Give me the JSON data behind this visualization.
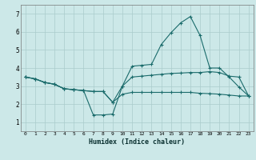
{
  "title": "",
  "xlabel": "Humidex (Indice chaleur)",
  "bg_color": "#cce8e8",
  "grid_color": "#aacccc",
  "line_color": "#1a6b6b",
  "xlim": [
    -0.5,
    23.5
  ],
  "ylim": [
    0.5,
    7.5
  ],
  "xticks": [
    0,
    1,
    2,
    3,
    4,
    5,
    6,
    7,
    8,
    9,
    10,
    11,
    12,
    13,
    14,
    15,
    16,
    17,
    18,
    19,
    20,
    21,
    22,
    23
  ],
  "yticks": [
    1,
    2,
    3,
    4,
    5,
    6,
    7
  ],
  "series1_x": [
    0,
    1,
    2,
    3,
    4,
    5,
    6,
    7,
    8,
    9,
    10,
    11,
    12,
    13,
    14,
    15,
    16,
    17,
    18,
    19,
    20,
    21,
    22,
    23
  ],
  "series1_y": [
    3.5,
    3.4,
    3.2,
    3.1,
    2.85,
    2.8,
    2.75,
    2.7,
    2.7,
    2.1,
    3.0,
    4.1,
    4.15,
    4.2,
    5.3,
    5.95,
    6.5,
    6.85,
    5.8,
    4.0,
    4.0,
    3.5,
    2.95,
    2.45
  ],
  "series2_x": [
    0,
    1,
    2,
    3,
    4,
    5,
    6,
    7,
    8,
    9,
    10,
    11,
    12,
    13,
    14,
    15,
    16,
    17,
    18,
    19,
    20,
    21,
    22,
    23
  ],
  "series2_y": [
    3.5,
    3.4,
    3.2,
    3.1,
    2.85,
    2.8,
    2.75,
    1.4,
    1.4,
    1.45,
    3.0,
    3.5,
    3.55,
    3.6,
    3.65,
    3.7,
    3.72,
    3.75,
    3.75,
    3.8,
    3.75,
    3.55,
    3.5,
    2.45
  ],
  "series3_x": [
    0,
    1,
    2,
    3,
    4,
    5,
    6,
    7,
    8,
    9,
    10,
    11,
    12,
    13,
    14,
    15,
    16,
    17,
    18,
    19,
    20,
    21,
    22,
    23
  ],
  "series3_y": [
    3.5,
    3.4,
    3.2,
    3.1,
    2.85,
    2.8,
    2.75,
    2.7,
    2.7,
    2.1,
    2.55,
    2.65,
    2.65,
    2.65,
    2.65,
    2.65,
    2.65,
    2.65,
    2.6,
    2.58,
    2.55,
    2.5,
    2.45,
    2.45
  ]
}
